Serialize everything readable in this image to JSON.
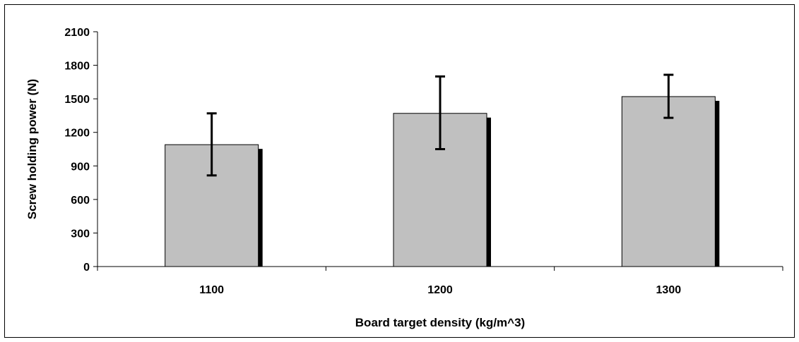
{
  "chart_data": {
    "type": "bar",
    "categories": [
      "1100",
      "1200",
      "1300"
    ],
    "series": [
      {
        "values": [
          1090,
          1370,
          1520
        ],
        "error_low": [
          815,
          1050,
          1330
        ],
        "error_high": [
          1370,
          1700,
          1715
        ]
      }
    ],
    "title": "",
    "xlabel": "Board target density (kg/m^3)",
    "ylabel": "Screw holding power (N)",
    "ylim": [
      0,
      2100
    ],
    "yticks": [
      0,
      300,
      600,
      900,
      1200,
      1500,
      1800,
      2100
    ],
    "grid": false,
    "legend": "none",
    "colors": {
      "bar_fill": "#c0c0c0",
      "bar_stroke": "#000000",
      "bar_shadow": "#000000",
      "axis": "#000000"
    }
  }
}
